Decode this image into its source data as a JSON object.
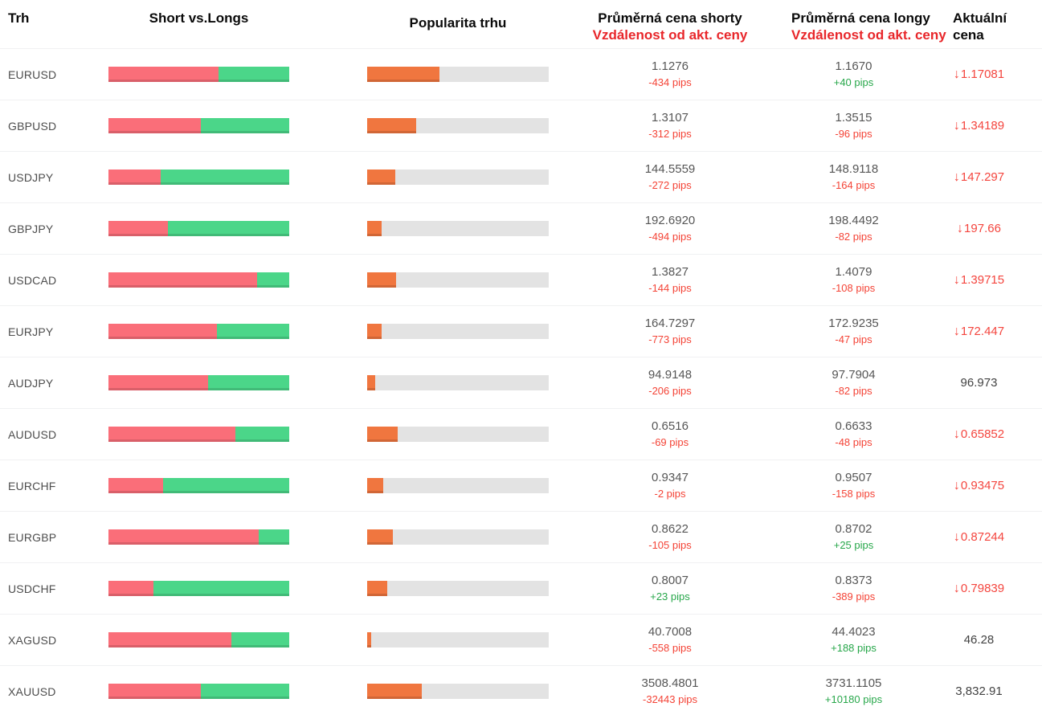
{
  "header": {
    "market": "Trh",
    "short_vs_longs": "Short vs.Longs",
    "popularity": "Popularita trhu",
    "avg_short_line1": "Průměrná cena shorty",
    "avg_short_line2": "Vzdálenost od akt. ceny",
    "avg_long_line1": "Průměrná cena longy",
    "avg_long_line2": "Vzdálenost od akt. ceny",
    "current_line1": "Aktuální",
    "current_line2": "cena"
  },
  "icons": {
    "down_arrow": "↓"
  },
  "colors": {
    "bar_red": "#fa6e79",
    "bar_green": "#4bd689",
    "bar_orange": "#f0763f",
    "bar_track": "#e3e3e3",
    "pips_red": "#f44336",
    "pips_green": "#27a74a",
    "header_red": "#e8262a",
    "price_down_red": "#f4453e"
  },
  "rows": [
    {
      "market": "EURUSD",
      "short_pct": 61,
      "popularity_pct": 40,
      "short_price": "1.1276",
      "short_dist": "-434 pips",
      "short_dist_positive": false,
      "long_price": "1.1670",
      "long_dist": "+40 pips",
      "long_dist_positive": true,
      "current_price": "1.17081",
      "trend": "down"
    },
    {
      "market": "GBPUSD",
      "short_pct": 51,
      "popularity_pct": 27,
      "short_price": "1.3107",
      "short_dist": "-312 pips",
      "short_dist_positive": false,
      "long_price": "1.3515",
      "long_dist": "-96 pips",
      "long_dist_positive": false,
      "current_price": "1.34189",
      "trend": "down"
    },
    {
      "market": "USDJPY",
      "short_pct": 29,
      "popularity_pct": 15.5,
      "short_price": "144.5559",
      "short_dist": "-272 pips",
      "short_dist_positive": false,
      "long_price": "148.9118",
      "long_dist": "-164 pips",
      "long_dist_positive": false,
      "current_price": "147.297",
      "trend": "down"
    },
    {
      "market": "GBPJPY",
      "short_pct": 33,
      "popularity_pct": 8,
      "short_price": "192.6920",
      "short_dist": "-494 pips",
      "short_dist_positive": false,
      "long_price": "198.4492",
      "long_dist": "-82 pips",
      "long_dist_positive": false,
      "current_price": "197.66",
      "trend": "down"
    },
    {
      "market": "USDCAD",
      "short_pct": 82,
      "popularity_pct": 16,
      "short_price": "1.3827",
      "short_dist": "-144 pips",
      "short_dist_positive": false,
      "long_price": "1.4079",
      "long_dist": "-108 pips",
      "long_dist_positive": false,
      "current_price": "1.39715",
      "trend": "down"
    },
    {
      "market": "EURJPY",
      "short_pct": 60,
      "popularity_pct": 8,
      "short_price": "164.7297",
      "short_dist": "-773 pips",
      "short_dist_positive": false,
      "long_price": "172.9235",
      "long_dist": "-47 pips",
      "long_dist_positive": false,
      "current_price": "172.447",
      "trend": "down"
    },
    {
      "market": "AUDJPY",
      "short_pct": 55,
      "popularity_pct": 4.5,
      "short_price": "94.9148",
      "short_dist": "-206 pips",
      "short_dist_positive": false,
      "long_price": "97.7904",
      "long_dist": "-82 pips",
      "long_dist_positive": false,
      "current_price": "96.973",
      "trend": "flat"
    },
    {
      "market": "AUDUSD",
      "short_pct": 70,
      "popularity_pct": 17,
      "short_price": "0.6516",
      "short_dist": "-69 pips",
      "short_dist_positive": false,
      "long_price": "0.6633",
      "long_dist": "-48 pips",
      "long_dist_positive": false,
      "current_price": "0.65852",
      "trend": "down"
    },
    {
      "market": "EURCHF",
      "short_pct": 30,
      "popularity_pct": 9,
      "short_price": "0.9347",
      "short_dist": "-2 pips",
      "short_dist_positive": false,
      "long_price": "0.9507",
      "long_dist": "-158 pips",
      "long_dist_positive": false,
      "current_price": "0.93475",
      "trend": "down"
    },
    {
      "market": "EURGBP",
      "short_pct": 83,
      "popularity_pct": 14,
      "short_price": "0.8622",
      "short_dist": "-105 pips",
      "short_dist_positive": false,
      "long_price": "0.8702",
      "long_dist": "+25 pips",
      "long_dist_positive": true,
      "current_price": "0.87244",
      "trend": "down"
    },
    {
      "market": "USDCHF",
      "short_pct": 25,
      "popularity_pct": 11,
      "short_price": "0.8007",
      "short_dist": "+23 pips",
      "short_dist_positive": true,
      "long_price": "0.8373",
      "long_dist": "-389 pips",
      "long_dist_positive": false,
      "current_price": "0.79839",
      "trend": "down"
    },
    {
      "market": "XAGUSD",
      "short_pct": 68,
      "popularity_pct": 2.2,
      "short_price": "40.7008",
      "short_dist": "-558 pips",
      "short_dist_positive": false,
      "long_price": "44.4023",
      "long_dist": "+188 pips",
      "long_dist_positive": true,
      "current_price": "46.28",
      "trend": "flat"
    },
    {
      "market": "XAUUSD",
      "short_pct": 51,
      "popularity_pct": 30,
      "short_price": "3508.4801",
      "short_dist": "-32443 pips",
      "short_dist_positive": false,
      "long_price": "3731.1105",
      "long_dist": "+10180 pips",
      "long_dist_positive": true,
      "current_price": "3,832.91",
      "trend": "flat"
    }
  ]
}
